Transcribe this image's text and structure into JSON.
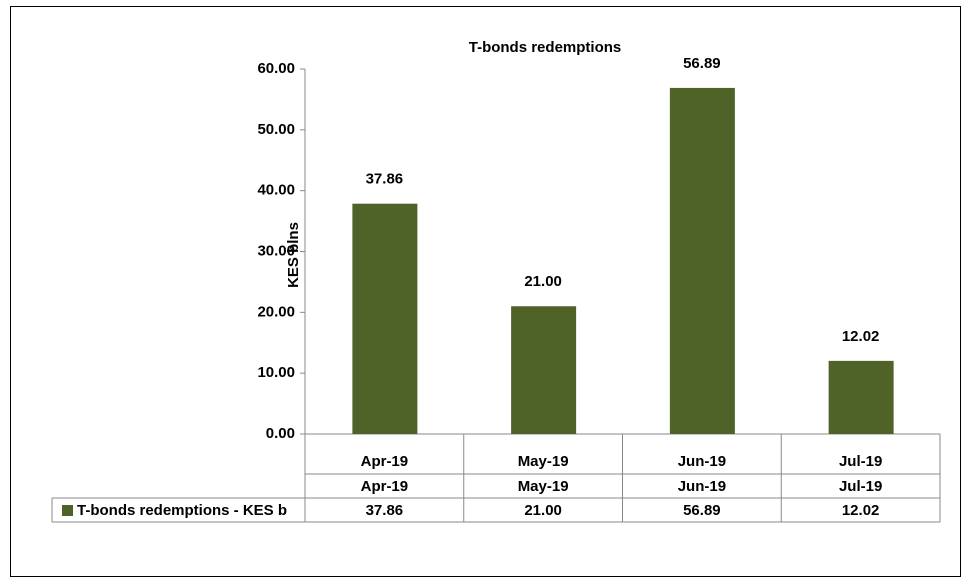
{
  "chart_data": {
    "type": "bar",
    "title": "T-bonds redemptions",
    "y_label": "KES blns",
    "categories": [
      "Apr-19",
      "May-19",
      "Jun-19",
      "Jul-19"
    ],
    "series": [
      {
        "name": "T-bonds redemptions - KES b",
        "color": "#4f6228",
        "values": [
          37.86,
          21,
          56.89,
          12.02
        ],
        "value_labels": [
          "37.86",
          "21.00",
          "56.89",
          "12.02"
        ]
      }
    ],
    "ylim": [
      0,
      60
    ],
    "yticks": [
      {
        "value": 0,
        "label": "0.00"
      },
      {
        "value": 10,
        "label": "10.00"
      },
      {
        "value": 20,
        "label": "20.00"
      },
      {
        "value": 30,
        "label": "30.00"
      },
      {
        "value": 40,
        "label": "40.00"
      },
      {
        "value": 50,
        "label": "50.00"
      },
      {
        "value": 60,
        "label": "60.00"
      }
    ]
  }
}
